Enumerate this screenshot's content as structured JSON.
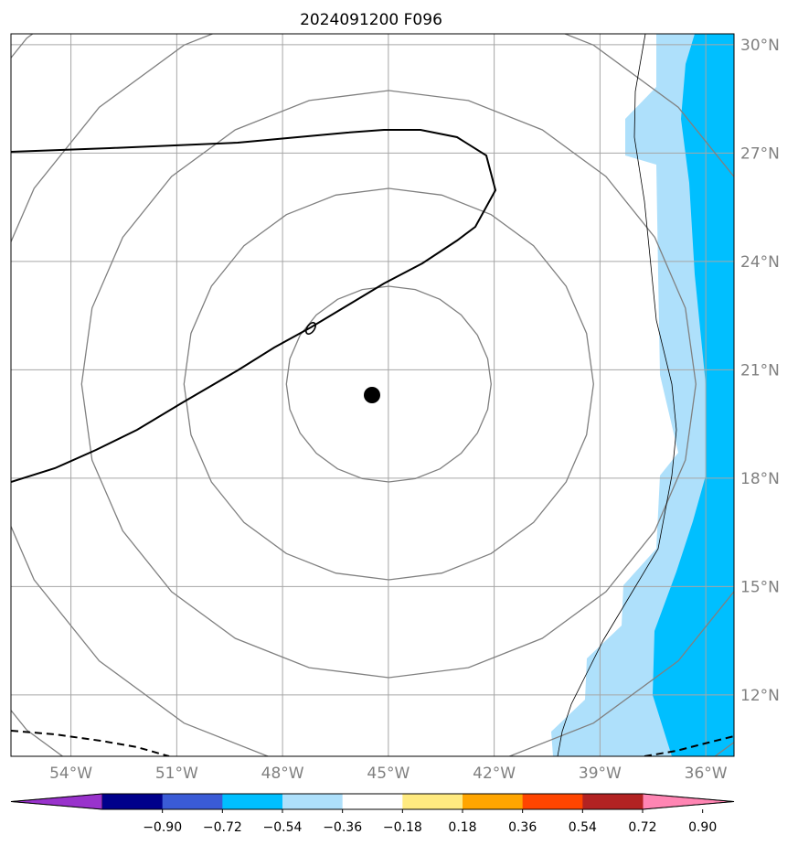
{
  "title": "2024091200 F096",
  "map": {
    "lon_range": [
      -55.7,
      -35.2
    ],
    "lat_range": [
      10.3,
      30.3
    ],
    "lon_ticks": [
      {
        "value": -54,
        "label": "54°W"
      },
      {
        "value": -51,
        "label": "51°W"
      },
      {
        "value": -48,
        "label": "48°W"
      },
      {
        "value": -45,
        "label": "45°W"
      },
      {
        "value": -42,
        "label": "42°W"
      },
      {
        "value": -39,
        "label": "39°W"
      },
      {
        "value": -36,
        "label": "36°W"
      }
    ],
    "lat_ticks": [
      {
        "value": 30,
        "label": "30°N"
      },
      {
        "value": 27,
        "label": "27°N"
      },
      {
        "value": 24,
        "label": "24°N"
      },
      {
        "value": 21,
        "label": "21°N"
      },
      {
        "value": 18,
        "label": "18°N"
      },
      {
        "value": 15,
        "label": "15°N"
      },
      {
        "value": 12,
        "label": "12°N"
      }
    ],
    "storm_center": {
      "lon": -45.3,
      "lat": 20.3
    },
    "range_ring_count": 5,
    "colors": {
      "grid": "#a6a6a6",
      "rings": "#808080",
      "tick_labels": "#808080",
      "anomaly_light": "#aee0fb",
      "anomaly_dark": "#00bfff",
      "contour": "#000000"
    }
  },
  "colorbar": {
    "boundaries": [
      "−0.90",
      "−0.72",
      "−0.54",
      "−0.36",
      "−0.18",
      "0.18",
      "0.36",
      "0.54",
      "0.72",
      "0.90"
    ],
    "colors": [
      "#9932cc",
      "#00008b",
      "#3a5bd6",
      "#00bfff",
      "#aee0fb",
      "#ffffff",
      "#ffea80",
      "#ffa500",
      "#ff4500",
      "#b22222",
      "#ff85b3"
    ],
    "extend": "both"
  }
}
